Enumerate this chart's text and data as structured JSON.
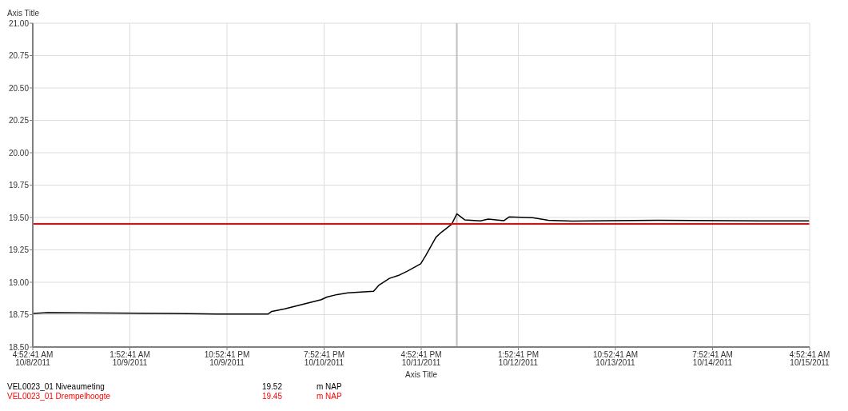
{
  "chart_data": {
    "type": "line",
    "xlabel": "Axis Title",
    "ylabel": "Axis Title",
    "xlim": [
      "2011-10-08T04:52",
      "2011-10-15T04:52"
    ],
    "ylim": [
      18.5,
      21
    ],
    "xticks": [
      {
        "value": "2011-10-08T04:52",
        "label": "4:52:41 AM\n10/8/2011"
      },
      {
        "value": "2011-10-09T01:52",
        "label": "1:52:41 AM\n10/9/2011"
      },
      {
        "value": "2011-10-09T22:52",
        "label": "10:52:41 PM\n10/9/2011"
      },
      {
        "value": "2011-10-10T19:52",
        "label": "7:52:41 PM\n10/10/2011"
      },
      {
        "value": "2011-10-11T16:52",
        "label": "4:52:41 PM\n10/11/2011"
      },
      {
        "value": "2011-10-12T13:52",
        "label": "1:52:41 PM\n10/12/2011"
      },
      {
        "value": "2011-10-13T10:52",
        "label": "10:52:41 AM\n10/13/2011"
      },
      {
        "value": "2011-10-14T07:52",
        "label": "7:52:41 AM\n10/14/2011"
      },
      {
        "value": "2011-10-15T04:52",
        "label": "4:52:41 AM\n10/15/2011"
      }
    ],
    "yticks": [
      {
        "value": 18.5,
        "label": "18.50"
      },
      {
        "value": 18.75,
        "label": "18.75"
      },
      {
        "value": 19,
        "label": "19.00"
      },
      {
        "value": 19.25,
        "label": "19.25"
      },
      {
        "value": 19.5,
        "label": "19.50"
      },
      {
        "value": 19.75,
        "label": "19.75"
      },
      {
        "value": 20,
        "label": "20.00"
      },
      {
        "value": 20.25,
        "label": "20.25"
      },
      {
        "value": 20.5,
        "label": "20.50"
      },
      {
        "value": 20.75,
        "label": "20.75"
      },
      {
        "value": 21,
        "label": "21.00"
      }
    ],
    "grid": true,
    "legend": "bottom",
    "marker": "none",
    "line_style": "solid",
    "series": [
      {
        "name": "VEL0023_01 Niveaumeting",
        "color": "#000000",
        "x": [
          "2011-10-08T04:52",
          "2011-10-08T08:04",
          "2011-10-09T10:52",
          "2011-10-09T20:52",
          "2011-10-10T07:46",
          "2011-10-10T08:34",
          "2011-10-10T11:22",
          "2011-10-10T19:16",
          "2011-10-10T20:28",
          "2011-10-10T22:40",
          "2011-10-11T01:00",
          "2011-10-11T06:34",
          "2011-10-11T07:40",
          "2011-10-11T10:00",
          "2011-10-11T12:10",
          "2011-10-11T13:52",
          "2011-10-11T16:46",
          "2011-10-11T17:52",
          "2011-10-11T20:04",
          "2011-10-11T21:16",
          "2011-10-11T23:28",
          "2011-10-12T00:34",
          "2011-10-12T02:16",
          "2011-10-12T05:40",
          "2011-10-12T07:22",
          "2011-10-12T10:46",
          "2011-10-12T11:52",
          "2011-10-12T16:58",
          "2011-10-12T20:22",
          "2011-10-13T01:28",
          "2011-10-13T20:04",
          "2011-10-14T18:34",
          "2011-10-15T04:40"
        ],
        "values": [
          18.76,
          18.765,
          18.76,
          18.755,
          18.755,
          18.775,
          18.795,
          18.866,
          18.886,
          18.905,
          18.918,
          18.93,
          18.976,
          19.03,
          19.056,
          19.086,
          19.143,
          19.207,
          19.348,
          19.387,
          19.448,
          19.528,
          19.482,
          19.474,
          19.488,
          19.476,
          19.504,
          19.498,
          19.478,
          19.472,
          19.478,
          19.474,
          19.474
        ]
      },
      {
        "name": "VEL0023_01 Drempelhoogte",
        "color": "#ff0000",
        "x": [
          "2011-10-08T04:52",
          "2011-10-15T04:40"
        ],
        "values": [
          19.45,
          19.45
        ]
      }
    ],
    "ref_lines": [
      {
        "axis": "x",
        "value": "2011-10-12T00:34",
        "color": "#c0c0c0"
      }
    ],
    "annotations": [
      "19.52",
      "m NAP",
      "19.45",
      "m NAP"
    ]
  }
}
